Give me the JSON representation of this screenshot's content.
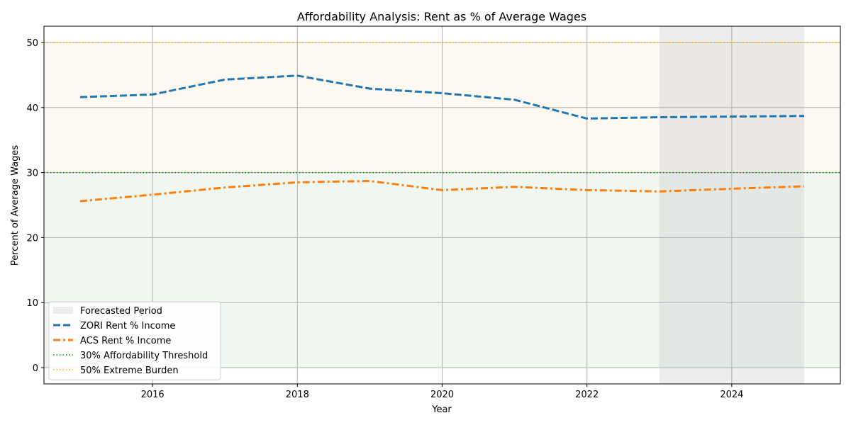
{
  "chart_data": {
    "type": "line",
    "title": "Affordability Analysis: Rent as % of Average Wages",
    "xlabel": "Year",
    "ylabel": "Percent of Average Wages",
    "xlim": [
      2014.5,
      2025.5
    ],
    "ylim": [
      -2.5,
      52.5
    ],
    "x_ticks": [
      2016,
      2018,
      2020,
      2022,
      2024
    ],
    "y_ticks": [
      0,
      10,
      20,
      30,
      40,
      50
    ],
    "grid": true,
    "legend_position": "lower-left",
    "forecast_band": {
      "label": "Forecasted Period",
      "x_start": 2023,
      "x_end": 2025,
      "color": "#d3d3d3"
    },
    "zones": [
      {
        "name": "affordable",
        "y_start": 0,
        "y_end": 30,
        "color": "#2e8b3a"
      },
      {
        "name": "burdened",
        "y_start": 30,
        "y_end": 50,
        "color": "#f5deb3"
      }
    ],
    "thresholds": [
      {
        "name": "30% Affordability Threshold",
        "y": 30,
        "color": "#008000",
        "style": "dotted"
      },
      {
        "name": "50% Extreme Burden",
        "y": 50,
        "color": "#ffa500",
        "style": "dotted"
      }
    ],
    "x": [
      2015,
      2016,
      2017,
      2018,
      2019,
      2020,
      2021,
      2022,
      2023,
      2024,
      2025
    ],
    "series": [
      {
        "name": "ZORI Rent % Income",
        "color": "#1f77b4",
        "style": "dashed",
        "values": [
          41.6,
          42.0,
          44.3,
          44.9,
          42.9,
          42.2,
          41.2,
          38.3,
          38.5,
          38.6,
          38.7
        ]
      },
      {
        "name": "ACS Rent % Income",
        "color": "#ff7f0e",
        "style": "dashdot",
        "values": [
          25.6,
          26.6,
          27.7,
          28.5,
          28.7,
          27.3,
          27.8,
          27.3,
          27.1,
          27.5,
          27.9
        ]
      }
    ]
  }
}
